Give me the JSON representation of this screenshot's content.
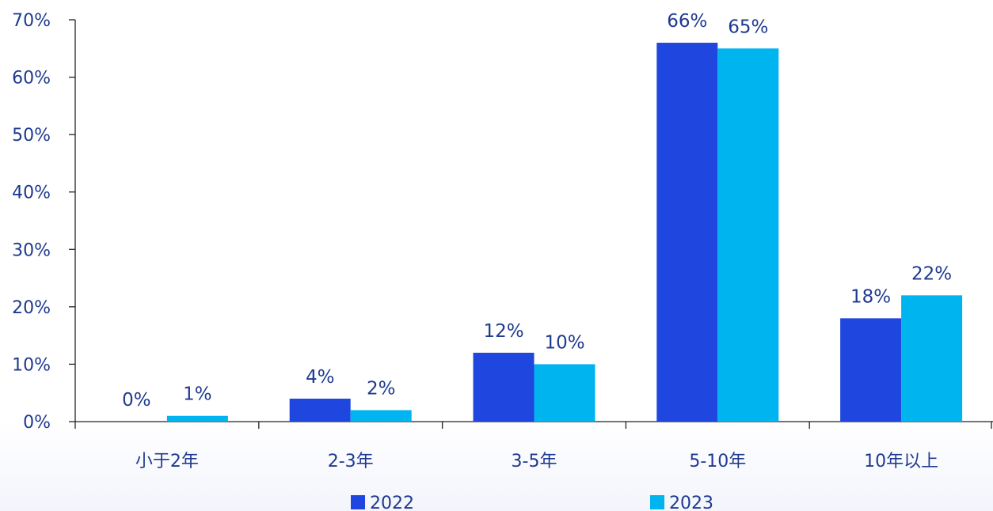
{
  "chart_data": {
    "type": "bar",
    "categories": [
      "小于2年",
      "2-3年",
      "3-5年",
      "5-10年",
      "10年以上"
    ],
    "series": [
      {
        "name": "2022",
        "values": [
          0,
          4,
          12,
          66,
          18
        ],
        "labels": [
          "0%",
          "4%",
          "12%",
          "66%",
          "18%"
        ],
        "color": "#1f47e0"
      },
      {
        "name": "2023",
        "values": [
          1,
          2,
          10,
          65,
          22
        ],
        "labels": [
          "1%",
          "2%",
          "10%",
          "65%",
          "22%"
        ],
        "color": "#00b4f0"
      }
    ],
    "ylim": [
      0,
      70
    ],
    "yticks": [
      0,
      10,
      20,
      30,
      40,
      50,
      60,
      70
    ],
    "ytick_labels": [
      "0%",
      "10%",
      "20%",
      "30%",
      "40%",
      "50%",
      "60%",
      "70%"
    ],
    "title": "",
    "xlabel": "",
    "ylabel": "",
    "legend_position": "bottom",
    "grid": false,
    "axis_color": "#222222",
    "text_color": "#1f3a8f"
  }
}
